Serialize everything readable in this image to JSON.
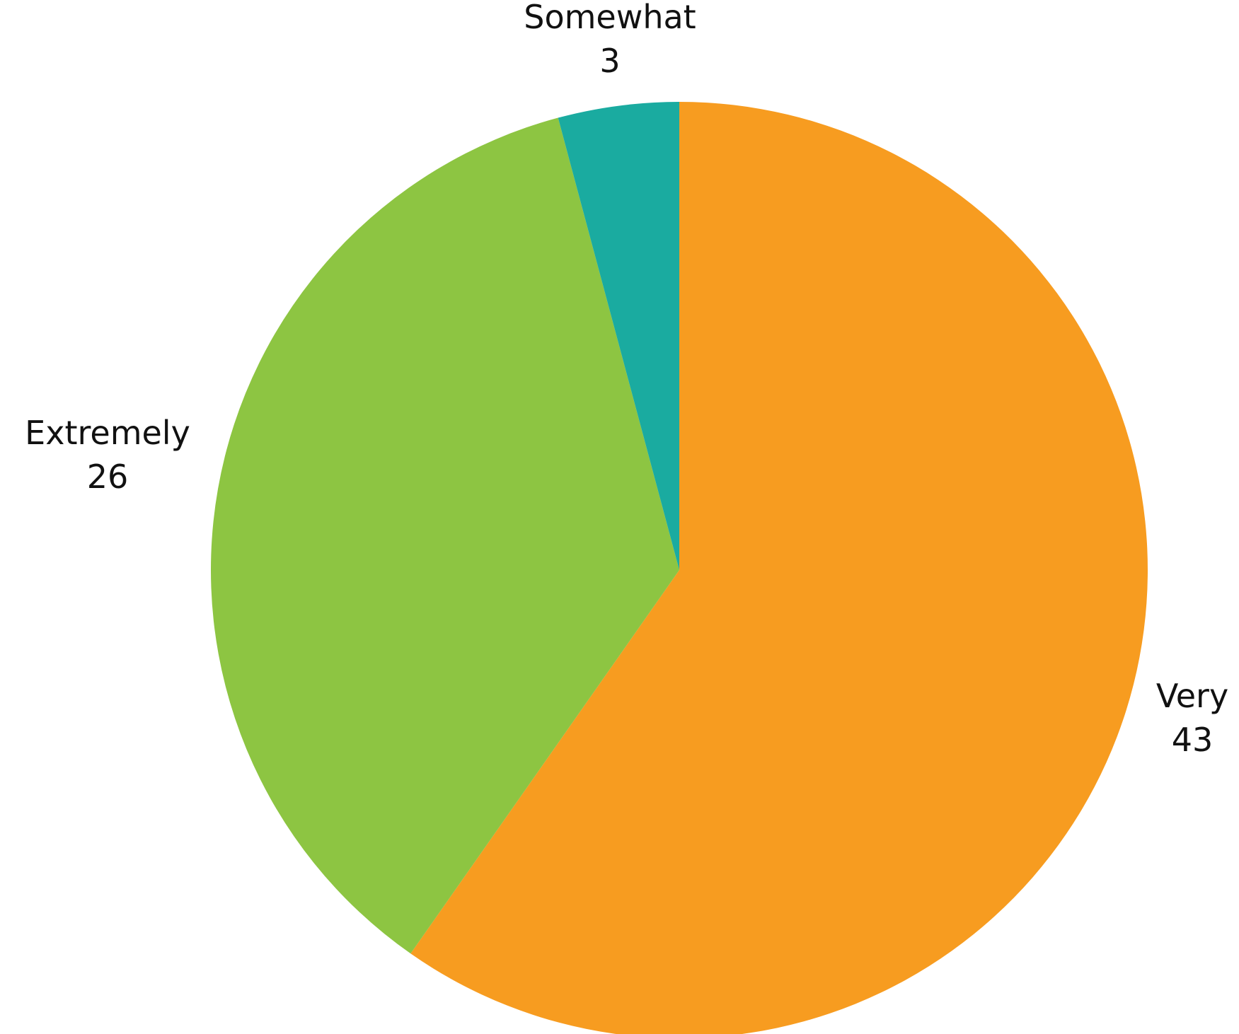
{
  "chart_data": {
    "type": "pie",
    "title": "",
    "slices": [
      {
        "label": "Very",
        "value": 43,
        "color": "#F79C20"
      },
      {
        "label": "Extremely",
        "value": 26,
        "color": "#8DC542"
      },
      {
        "label": "Somewhat",
        "value": 3,
        "color": "#1AABA0"
      }
    ],
    "start": "top",
    "direction": "clockwise",
    "legend": "none",
    "labels": "outside"
  }
}
